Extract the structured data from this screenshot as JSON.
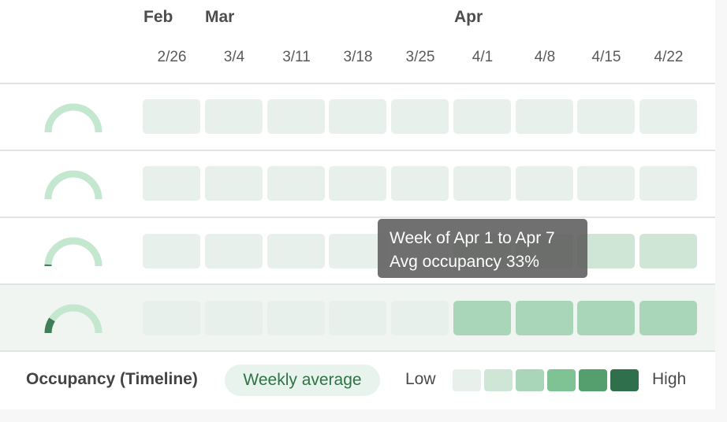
{
  "months": [
    "Feb",
    "Mar",
    "Apr"
  ],
  "weeks": [
    "2/26",
    "3/4",
    "3/11",
    "3/18",
    "3/25",
    "4/1",
    "4/8",
    "4/15",
    "4/22"
  ],
  "rows": [
    {
      "gauge_fraction": 0.0,
      "levels": [
        0,
        0,
        0,
        0,
        0,
        0,
        0,
        0,
        0
      ]
    },
    {
      "gauge_fraction": 0.0,
      "levels": [
        0,
        0,
        0,
        0,
        0,
        0,
        0,
        0,
        0
      ]
    },
    {
      "gauge_fraction": 0.02,
      "levels": [
        0,
        0,
        0,
        0,
        0,
        1,
        1,
        1,
        1
      ]
    },
    {
      "gauge_fraction": 0.18,
      "levels": [
        0,
        0,
        0,
        0,
        0,
        2,
        2,
        2,
        2
      ]
    }
  ],
  "tooltip": {
    "line1": "Week of Apr 1 to Apr 7",
    "line2": "Avg occupancy 33%"
  },
  "footer": {
    "title": "Occupancy (Timeline)",
    "mode_label": "Weekly average",
    "legend_low": "Low",
    "legend_high": "High"
  },
  "colors": {
    "scale": [
      "#e8f0ec",
      "#cfe6d7",
      "#a9d6b9",
      "#7fc293",
      "#559e6d",
      "#2f6f4c"
    ],
    "gauge_track": "#c4e7d0",
    "gauge_fill": "#3f7e57"
  }
}
